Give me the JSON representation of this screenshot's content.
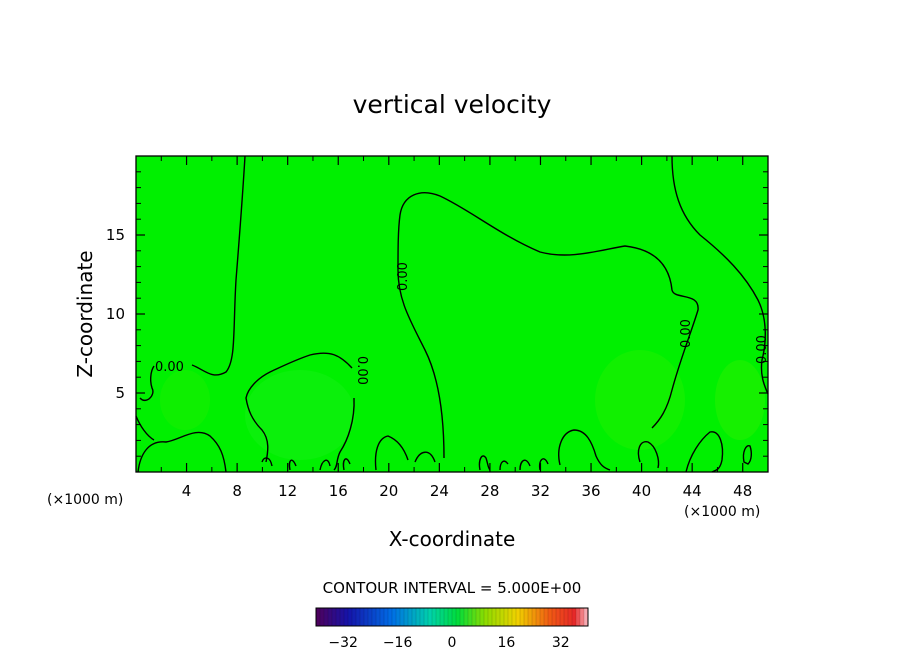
{
  "chart_data": {
    "type": "heatmap",
    "title": "vertical velocity",
    "xlabel": "X-coordinate",
    "ylabel": "Z-coordinate",
    "x_unit": "(×1000 m)",
    "y_unit": "(×1000 m)",
    "xlim": [
      0,
      50
    ],
    "ylim": [
      0,
      20
    ],
    "x_ticks": [
      4,
      8,
      12,
      16,
      20,
      24,
      28,
      32,
      36,
      40,
      44,
      48
    ],
    "y_ticks": [
      5,
      10,
      15
    ],
    "field_color": "#00f000",
    "contour_interval_text": "CONTOUR INTERVAL = 5.000E+00",
    "contour_labels": [
      "0.00",
      "0.00",
      "0.00",
      "0.00",
      "0.00"
    ],
    "colorbar": {
      "range": [
        -40,
        40
      ],
      "ticks": [
        -32,
        -16,
        0,
        16,
        32
      ]
    }
  }
}
